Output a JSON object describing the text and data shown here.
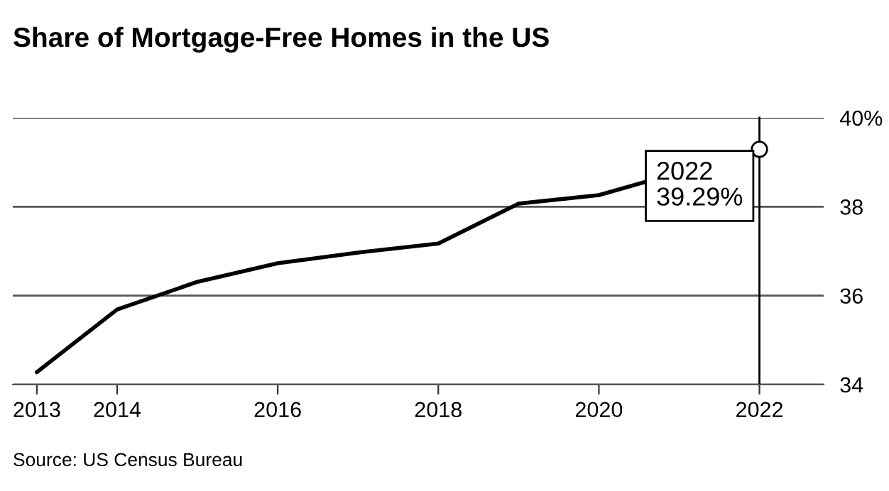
{
  "chart_data": {
    "type": "line",
    "title": "Share of Mortgage-Free Homes in the US",
    "series": [
      {
        "name": null,
        "color": "#000000",
        "x": [
          2013,
          2014,
          2015,
          2016,
          2017,
          2018,
          2019,
          2020,
          2022
        ],
        "values": [
          34.28,
          35.69,
          36.31,
          36.73,
          36.97,
          37.17,
          38.07,
          38.26,
          39.29
        ]
      },
      {
        "type": "scatter",
        "color": "#ffffff",
        "marker": "circle",
        "x": [
          2022
        ],
        "values": [
          39.29
        ]
      }
    ],
    "xlim": [
      2012.7,
      2022.8
    ],
    "xticks": [
      2013,
      2014,
      2016,
      2018,
      2020,
      2022
    ],
    "ylim": [
      34,
      40
    ],
    "yticks": [
      34,
      36,
      38,
      {
        "value": 40,
        "label": "40%"
      }
    ],
    "grid": "y",
    "ref_lines": [
      {
        "axis": "x",
        "value": 2022,
        "color": "#000000"
      }
    ],
    "annotations": [
      "2022\n39.29%",
      "Source: US Census Bureau"
    ]
  }
}
